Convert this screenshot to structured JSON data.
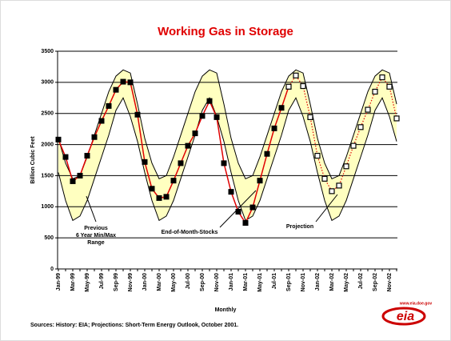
{
  "chart_data": {
    "type": "line",
    "title": "Working Gas in Storage",
    "ylabel": "Billion Cubic Feet",
    "xlabel": "Monthly",
    "source": "Sources: History: EIA; Projections: Short-Term Energy Outlook, October 2001.",
    "logo": {
      "url": "www.eia.doe.gov",
      "name": "eia"
    },
    "annotations": [
      "Previous",
      "6 Year Min/Max",
      "Range",
      "End-of-Month-Stocks",
      "Projection"
    ],
    "categories": [
      "Jan-99",
      null,
      "Mar-99",
      null,
      "May-99",
      null,
      "Jul-99",
      null,
      "Sep-99",
      null,
      "Nov-99",
      null,
      "Jan-00",
      null,
      "Mar-00",
      null,
      "May-00",
      null,
      "Jul-00",
      null,
      "Sep-00",
      null,
      "Nov-00",
      null,
      "Jan-01",
      null,
      "Mar-01",
      null,
      "May-01",
      null,
      "Jul-01",
      null,
      "Sep-01",
      null,
      "Nov-01",
      null,
      "Jan-02",
      null,
      "Mar-02",
      null,
      "May-02",
      null,
      "Jul-02",
      null,
      "Sep-02",
      null,
      "Nov-02",
      null
    ],
    "ylim": [
      0,
      3500
    ],
    "yticks": [
      0,
      500,
      1000,
      1500,
      2000,
      2500,
      3000,
      3500
    ],
    "grid": true,
    "range": {
      "color": "#ffffc0",
      "max": [
        2100,
        1700,
        1450,
        1500,
        1800,
        2150,
        2500,
        2850,
        3100,
        3200,
        3150,
        2650,
        2100,
        1700,
        1450,
        1500,
        1800,
        2150,
        2500,
        2850,
        3100,
        3200,
        3150,
        2650,
        2100,
        1700,
        1450,
        1500,
        1800,
        2150,
        2500,
        2850,
        3100,
        3200,
        3150,
        2650,
        2100,
        1700,
        1450,
        1500,
        1800,
        2150,
        2500,
        2850,
        3100,
        3200,
        3150,
        2650
      ],
      "min": [
        1550,
        1100,
        780,
        850,
        1100,
        1450,
        1800,
        2150,
        2550,
        2750,
        2450,
        2050,
        1550,
        1100,
        780,
        850,
        1100,
        1450,
        1800,
        2150,
        2550,
        2750,
        2450,
        2050,
        1550,
        1100,
        780,
        850,
        1100,
        1450,
        1800,
        2150,
        2550,
        2750,
        2450,
        2050,
        1550,
        1100,
        780,
        850,
        1100,
        1450,
        1800,
        2150,
        2550,
        2750,
        2450,
        2050
      ]
    },
    "series": [
      {
        "style": "history",
        "color": "#e00000",
        "values": [
          2080,
          1800,
          1410,
          1500,
          1820,
          2120,
          2380,
          2620,
          2880,
          3010,
          3000,
          2480,
          1720,
          1290,
          1140,
          1160,
          1420,
          1700,
          1980,
          2180,
          2460,
          2700,
          2440,
          1700,
          1240,
          920,
          740,
          990,
          1420,
          1850,
          2260,
          2590,
          2930,
          null,
          null,
          null,
          null,
          null,
          null,
          null,
          null,
          null,
          null,
          null,
          null,
          null,
          null,
          null
        ]
      },
      {
        "style": "projection",
        "color": "#e00000",
        "values": [
          null,
          null,
          null,
          null,
          null,
          null,
          null,
          null,
          null,
          null,
          null,
          null,
          null,
          null,
          null,
          null,
          null,
          null,
          null,
          null,
          null,
          null,
          null,
          null,
          null,
          null,
          null,
          null,
          null,
          null,
          null,
          null,
          2930,
          3110,
          2940,
          2440,
          1820,
          1450,
          1250,
          1340,
          1650,
          1980,
          2280,
          2560,
          2850,
          3080,
          2930,
          2420
        ]
      }
    ]
  }
}
